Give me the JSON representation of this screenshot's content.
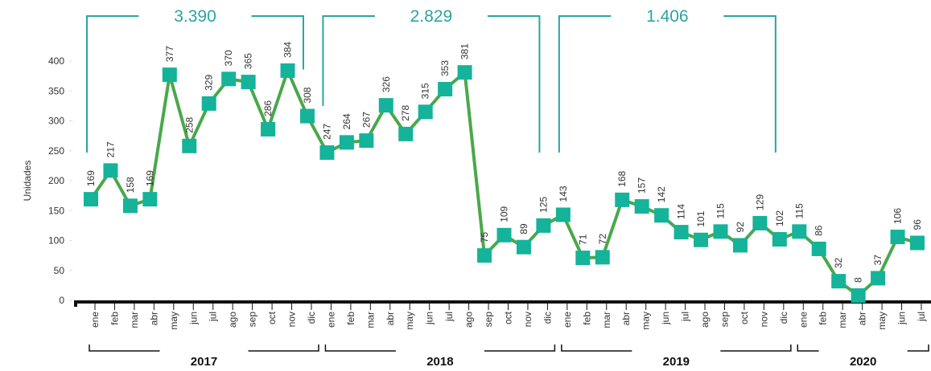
{
  "chart_data": {
    "type": "line",
    "y_axis_label": "Unidades",
    "categories": [
      "ene",
      "feb",
      "mar",
      "abr",
      "may",
      "jun",
      "jul",
      "ago",
      "sep",
      "oct",
      "nov",
      "dic",
      "ene",
      "feb",
      "mar",
      "abr",
      "may",
      "jun",
      "jul",
      "ago",
      "sep",
      "oct",
      "nov",
      "dic",
      "ene",
      "feb",
      "mar",
      "abr",
      "may",
      "jun",
      "jul",
      "ago",
      "sep",
      "oct",
      "nov",
      "dic",
      "ene",
      "feb",
      "mar",
      "abr",
      "may",
      "jun",
      "jul"
    ],
    "years": [
      "2017",
      "2018",
      "2019",
      "2020"
    ],
    "annotations": [
      "3.390",
      "2.829",
      "1.406"
    ],
    "series": [
      {
        "name": "Unidades",
        "color": "#4aa84a",
        "marker_color": "#14b39a",
        "values": [
          169,
          217,
          158,
          169,
          377,
          258,
          329,
          370,
          365,
          286,
          384,
          308,
          247,
          264,
          267,
          326,
          278,
          315,
          353,
          381,
          75,
          109,
          89,
          125,
          143,
          71,
          72,
          168,
          157,
          142,
          114,
          101,
          115,
          92,
          129,
          102,
          115,
          86,
          32,
          8,
          37,
          106,
          96
        ]
      }
    ],
    "ylim": [
      0,
      400
    ],
    "yticks": [
      0,
      50,
      100,
      150,
      200,
      250,
      300,
      350,
      400
    ]
  }
}
